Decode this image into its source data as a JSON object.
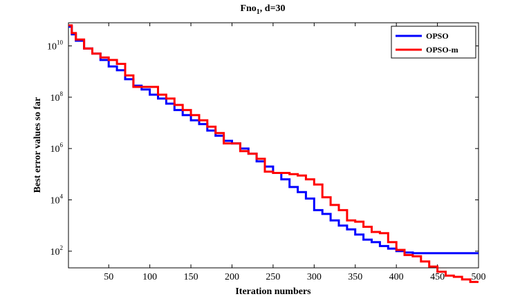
{
  "chart_data": {
    "type": "line",
    "title_main": "Fno",
    "title_sub": "1",
    "title_suffix": ",  d=30",
    "xlabel": "Iteration numbers",
    "ylabel": "Best error values so far",
    "xlim": [
      1,
      500
    ],
    "ylim_log10": [
      1.35,
      10.9
    ],
    "yscale": "log",
    "grid": false,
    "legend_position": "top-right",
    "x_ticks": [
      50,
      100,
      150,
      200,
      250,
      300,
      350,
      400,
      450,
      500
    ],
    "y_ticks": [
      {
        "base": "10",
        "exp": "2",
        "log10": 2
      },
      {
        "base": "10",
        "exp": "4",
        "log10": 4
      },
      {
        "base": "10",
        "exp": "6",
        "log10": 6
      },
      {
        "base": "10",
        "exp": "8",
        "log10": 8
      },
      {
        "base": "10",
        "exp": "10",
        "log10": 10
      }
    ],
    "series": [
      {
        "name": "OPSO",
        "color": "#0000ff",
        "x": [
          1,
          5,
          10,
          20,
          30,
          40,
          50,
          60,
          70,
          80,
          90,
          100,
          110,
          120,
          130,
          140,
          150,
          160,
          170,
          180,
          190,
          200,
          210,
          220,
          230,
          240,
          250,
          260,
          270,
          280,
          290,
          300,
          310,
          320,
          330,
          340,
          350,
          360,
          370,
          380,
          390,
          400,
          410,
          420,
          430,
          440,
          450,
          460,
          470,
          480,
          490,
          500
        ],
        "log10": [
          10.75,
          10.45,
          10.2,
          9.9,
          9.7,
          9.45,
          9.2,
          9.05,
          8.7,
          8.45,
          8.3,
          8.1,
          7.95,
          7.75,
          7.5,
          7.3,
          7.1,
          6.95,
          6.7,
          6.5,
          6.3,
          6.2,
          6.0,
          5.8,
          5.5,
          5.3,
          5.05,
          4.8,
          4.5,
          4.3,
          4.05,
          3.6,
          3.45,
          3.2,
          3.0,
          2.85,
          2.65,
          2.45,
          2.35,
          2.2,
          2.1,
          2.0,
          1.95,
          1.92,
          1.92,
          1.92,
          1.92,
          1.92,
          1.92,
          1.92,
          1.92,
          1.92
        ]
      },
      {
        "name": "OPSO-m",
        "color": "#ff0000",
        "x": [
          1,
          5,
          10,
          20,
          30,
          40,
          50,
          60,
          70,
          80,
          90,
          100,
          110,
          120,
          130,
          140,
          150,
          160,
          170,
          180,
          190,
          200,
          210,
          220,
          230,
          240,
          250,
          260,
          270,
          280,
          290,
          300,
          310,
          320,
          330,
          340,
          350,
          360,
          370,
          380,
          390,
          400,
          410,
          420,
          430,
          440,
          450,
          460,
          470,
          480,
          490,
          500
        ],
        "log10": [
          10.8,
          10.5,
          10.25,
          9.9,
          9.7,
          9.55,
          9.45,
          9.3,
          8.85,
          8.4,
          8.4,
          8.4,
          8.1,
          7.95,
          7.7,
          7.5,
          7.3,
          7.1,
          6.85,
          6.6,
          6.2,
          6.2,
          5.9,
          5.8,
          5.6,
          5.1,
          5.05,
          5.05,
          5.0,
          4.95,
          4.8,
          4.6,
          4.1,
          3.8,
          3.6,
          3.2,
          3.15,
          2.95,
          2.75,
          2.7,
          2.35,
          2.05,
          1.85,
          1.8,
          1.6,
          1.4,
          1.2,
          1.05,
          1.0,
          0.9,
          0.8,
          0.8
        ]
      }
    ]
  }
}
